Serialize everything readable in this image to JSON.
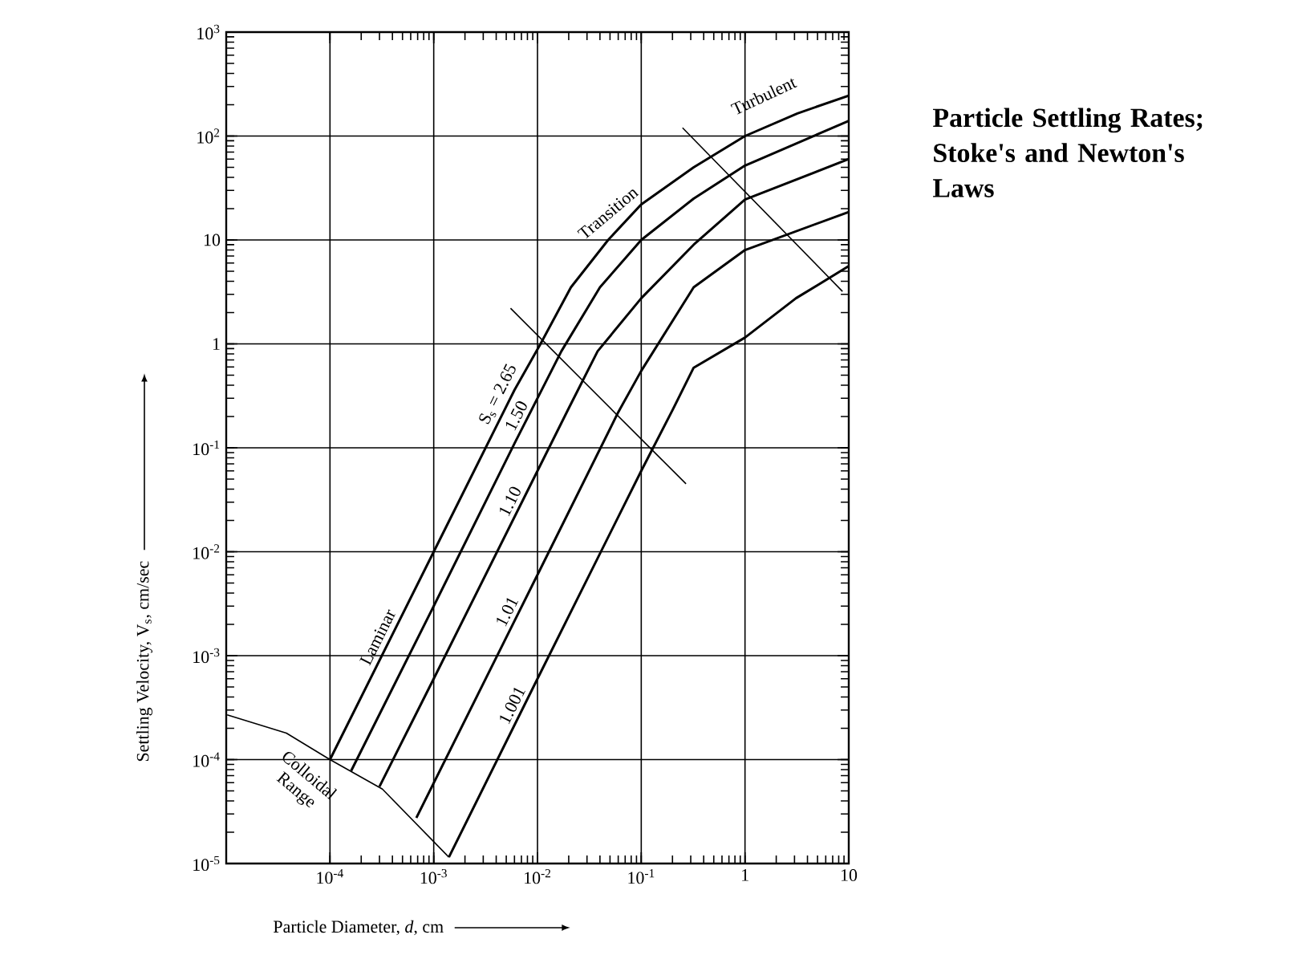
{
  "chart_data": {
    "type": "line",
    "title": "Particle Settling Rates; Stoke's and Newton's Laws",
    "xlabel": "Particle Diameter, *d*, cm",
    "ylabel": "Settling Velocity, V$_{s}$, cm/sec",
    "log": "xy",
    "grid": true,
    "xlim": [
      1e-05,
      10
    ],
    "ylim": [
      1e-05,
      1000
    ],
    "xticks": [
      {
        "value": 0.0001,
        "label": "10$^{-4}$"
      },
      {
        "value": 0.001,
        "label": "10$^{-3}$"
      },
      {
        "value": 0.01,
        "label": "10$^{-2}$"
      },
      {
        "value": 0.1,
        "label": "10$^{-1}$"
      },
      1,
      10
    ],
    "yticks": [
      {
        "value": 1e-05,
        "label": "10$^{-5}$"
      },
      {
        "value": 0.0001,
        "label": "10$^{-4}$"
      },
      {
        "value": 0.001,
        "label": "10$^{-3}$"
      },
      {
        "value": 0.01,
        "label": "10$^{-2}$"
      },
      {
        "value": 0.1,
        "label": "10$^{-1}$"
      },
      1,
      10,
      {
        "value": 100,
        "label": "10$^{2}$"
      },
      {
        "value": 1000,
        "label": "10$^{3}$"
      }
    ],
    "series": [
      {
        "name": "S$_{s}$ = 2.65",
        "color": "#000000",
        "x": [
          0.0001,
          0.001,
          0.006,
          0.0107,
          0.021,
          0.048,
          0.1,
          0.32,
          1,
          3.2,
          10
        ],
        "values": [
          0.0001,
          0.01,
          0.36,
          1,
          3.5,
          10,
          22,
          50,
          100,
          165,
          245
        ]
      },
      {
        "name": "1.50",
        "color": "#000000",
        "x": [
          0.00016,
          0.001,
          0.006,
          0.017,
          0.04,
          0.1,
          0.32,
          1,
          10
        ],
        "values": [
          7.8e-05,
          0.003,
          0.11,
          0.85,
          3.5,
          10,
          25,
          52,
          140
        ]
      },
      {
        "name": "1.10",
        "color": "#000000",
        "x": [
          0.0003,
          0.001,
          0.01,
          0.02,
          0.038,
          0.1,
          0.32,
          1,
          10
        ],
        "values": [
          5.5e-05,
          0.0006,
          0.06,
          0.24,
          0.85,
          2.75,
          9,
          24.5,
          60
        ]
      },
      {
        "name": "1.01",
        "color": "#000000",
        "x": [
          0.00068,
          0.01,
          0.06,
          0.1,
          0.32,
          1,
          10
        ],
        "values": [
          2.75e-05,
          0.006,
          0.22,
          0.55,
          3.5,
          8,
          18.6
        ]
      },
      {
        "name": "1.001",
        "color": "#000000",
        "x": [
          0.0014,
          0.01,
          0.1,
          0.2,
          0.32,
          1,
          3.1,
          10
        ],
        "values": [
          1.15e-05,
          0.0006,
          0.06,
          0.23,
          0.59,
          1.15,
          2.75,
          5.6
        ]
      },
      {
        "color": "#000000",
        "x": [
          1.02e-05,
          3.8e-05,
          0.0001,
          0.00032,
          0.0014
        ],
        "values": [
          0.00027,
          0.00018,
          0.0001,
          5.2e-05,
          1.15e-05
        ]
      },
      {
        "color": "#000000",
        "x": [
          0.0055,
          0.27
        ],
        "values": [
          2.2,
          0.045
        ]
      },
      {
        "color": "#000000",
        "x": [
          0.25,
          8.7
        ],
        "values": [
          120,
          3.2
        ]
      }
    ],
    "annotations": [
      "Laminar",
      "Transition",
      "Turbulent",
      "Colloidal Range"
    ]
  }
}
